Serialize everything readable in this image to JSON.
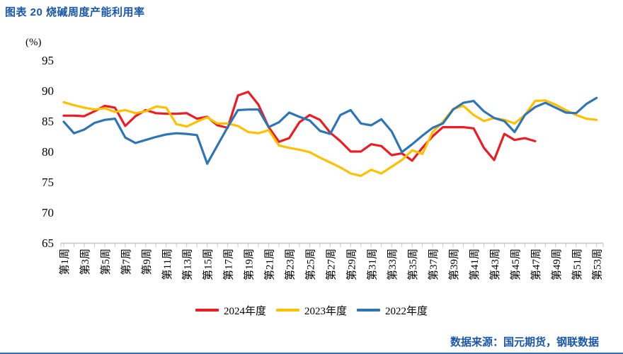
{
  "page": {
    "title": "图表 20 烧碱周度产能利用率",
    "y_unit_label": "(%)",
    "source_note": "数据来源：国元期货，钢联数据"
  },
  "colors": {
    "title_blue": "#1B57A8",
    "source_blue": "#1B57A8",
    "axis_line": "#C6C6C6",
    "tick_mark": "#C6C6C6",
    "tick_label": "#000000",
    "bottom_rule": "#2E74B5"
  },
  "chart_data": {
    "type": "line",
    "title": "图表 20 烧碱周度产能利用率",
    "ylabel": "(%)",
    "xlabel": "",
    "ylim": [
      65,
      95
    ],
    "yticks": [
      65,
      70,
      75,
      80,
      85,
      90,
      95
    ],
    "grid": false,
    "legend_position": "bottom",
    "weeks_total": 53,
    "x_tick_labels": [
      "第1周",
      "第3周",
      "第5周",
      "第7周",
      "第9周",
      "第11周",
      "第13周",
      "第15周",
      "第17周",
      "第19周",
      "第21周",
      "第23周",
      "第25周",
      "第27周",
      "第29周",
      "第31周",
      "第33周",
      "第35周",
      "第37周",
      "第39周",
      "第41周",
      "第43周",
      "第45周",
      "第47周",
      "第49周",
      "第51周",
      "第53周"
    ],
    "series": [
      {
        "name": "2024年度",
        "color": "#EC1C24",
        "start_week": 1,
        "values": [
          85.9,
          85.9,
          85.8,
          86.6,
          87.5,
          87.2,
          84.2,
          85.8,
          86.8,
          86.3,
          86.2,
          86.2,
          86.3,
          85.4,
          85.7,
          84.3,
          83.9,
          89.2,
          89.8,
          87.7,
          84.0,
          81.6,
          82.2,
          84.8,
          86.0,
          85.2,
          83.1,
          81.7,
          80.0,
          80.0,
          81.2,
          80.9,
          79.4,
          79.7,
          78.5,
          80.6,
          82.5,
          84.0,
          84.0,
          84.0,
          83.8,
          80.6,
          78.6,
          82.9,
          81.9,
          82.2,
          81.7
        ]
      },
      {
        "name": "2023年度",
        "color": "#FFC000",
        "start_week": 1,
        "values": [
          88.1,
          87.6,
          87.2,
          86.9,
          87.1,
          86.5,
          86.8,
          86.3,
          86.6,
          87.4,
          87.2,
          84.5,
          84.1,
          84.9,
          85.6,
          84.6,
          84.6,
          84.2,
          83.2,
          83.0,
          83.5,
          81.0,
          80.6,
          80.3,
          79.9,
          79.0,
          78.2,
          77.4,
          76.4,
          76.0,
          77.0,
          76.4,
          77.5,
          78.6,
          80.2,
          79.6,
          83.2,
          84.9,
          87.0,
          87.5,
          86.0,
          85.0,
          85.5,
          85.2,
          84.6,
          86.0,
          88.3,
          88.4,
          87.7,
          86.8,
          86.0,
          85.4,
          85.2
        ]
      },
      {
        "name": "2022年度",
        "color": "#2E75B6",
        "start_week": 1,
        "values": [
          84.9,
          83.0,
          83.6,
          84.7,
          85.2,
          85.4,
          82.3,
          81.4,
          81.9,
          82.4,
          82.8,
          83.0,
          82.9,
          82.7,
          78.0,
          81.0,
          84.0,
          86.8,
          86.9,
          86.9,
          84.0,
          84.8,
          86.4,
          85.7,
          85.1,
          83.4,
          82.9,
          86.0,
          86.8,
          84.6,
          84.3,
          85.3,
          83.3,
          79.9,
          81.2,
          82.6,
          83.9,
          84.6,
          86.9,
          88.0,
          88.3,
          86.6,
          85.5,
          85.0,
          83.2,
          86.0,
          87.3,
          88.0,
          87.2,
          86.4,
          86.3,
          87.8,
          88.8
        ]
      }
    ]
  }
}
